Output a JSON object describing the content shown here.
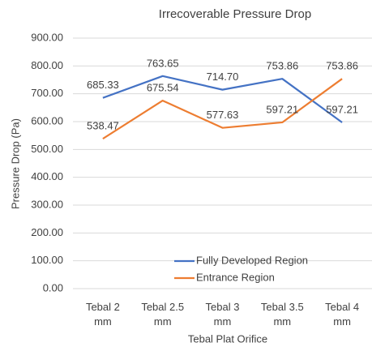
{
  "chart_data": {
    "type": "line",
    "title": "Irrecoverable Pressure Drop",
    "x_label": "Tebal Plat Orifice",
    "y_label": "Pressure Drop (Pa)",
    "categories": [
      "Tebal 2 mm",
      "Tebal 2.5 mm",
      "Tebal 3 mm",
      "Tebal 3.5 mm",
      "Tebal 4 mm"
    ],
    "series": [
      {
        "name": "Fully Developed Region",
        "color": "#4472c4",
        "values": [
          685.33,
          763.65,
          714.7,
          753.86,
          597.21
        ],
        "value_labels": [
          "685.33",
          "763.65",
          "714.70",
          "753.86",
          "597.21"
        ]
      },
      {
        "name": "Entrance Region",
        "color": "#ed7d31",
        "values": [
          538.47,
          675.54,
          577.63,
          597.21,
          753.86
        ],
        "value_labels": [
          "538.47",
          "675.54",
          "577.63",
          "597.21",
          "753.86"
        ]
      }
    ],
    "ylim": [
      0,
      900
    ],
    "yticks": [
      {
        "value": 0,
        "label": "0.00"
      },
      {
        "value": 100,
        "label": "100.00"
      },
      {
        "value": 200,
        "label": "200.00"
      },
      {
        "value": 300,
        "label": "300.00"
      },
      {
        "value": 400,
        "label": "400.00"
      },
      {
        "value": 500,
        "label": "500.00"
      },
      {
        "value": 600,
        "label": "600.00"
      },
      {
        "value": 700,
        "label": "700.00"
      },
      {
        "value": 800,
        "label": "800.00"
      },
      {
        "value": 900,
        "label": "900.00"
      }
    ],
    "grid": true,
    "legend": "bottom"
  }
}
